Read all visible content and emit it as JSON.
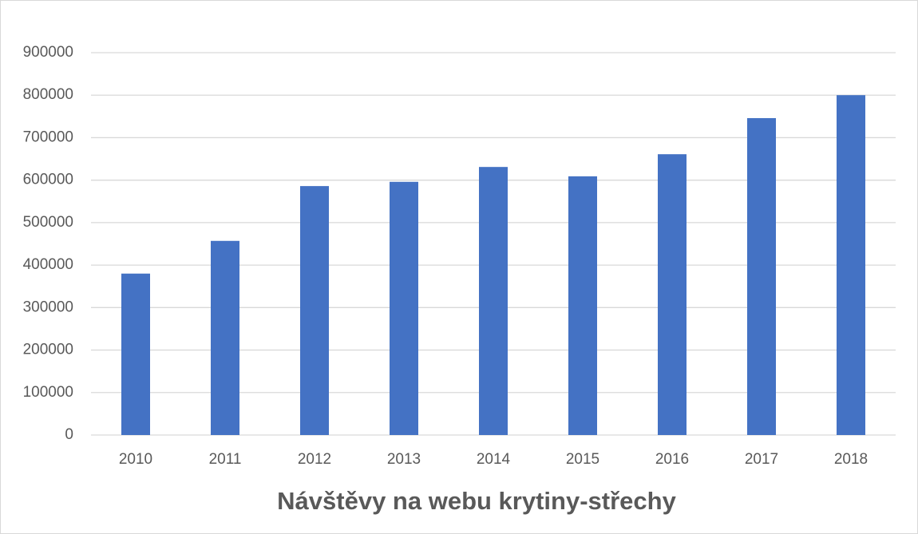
{
  "chart_data": {
    "type": "bar",
    "title": "Návštěvy na webu krytiny-střechy",
    "categories": [
      "2010",
      "2011",
      "2012",
      "2013",
      "2014",
      "2015",
      "2016",
      "2017",
      "2018"
    ],
    "values": [
      380000,
      457000,
      586000,
      596000,
      631000,
      609000,
      661000,
      746000,
      800000
    ],
    "color": "#4472c4",
    "ylim": [
      0,
      900000
    ],
    "yticks": [
      0,
      100000,
      200000,
      300000,
      400000,
      500000,
      600000,
      700000,
      800000,
      900000
    ],
    "grid": true
  }
}
